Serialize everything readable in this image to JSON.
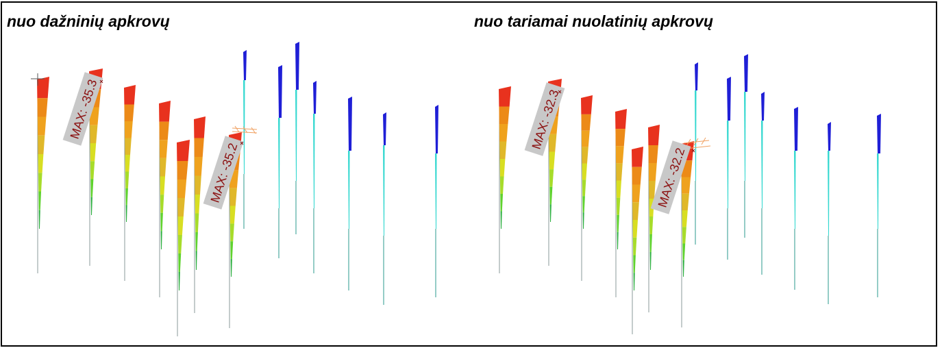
{
  "panels": [
    {
      "title": "nuo dažninių apkrovų",
      "max_labels": [
        "MAX: -35.3",
        "MAX: -35.2"
      ]
    },
    {
      "title": "nuo tariamai nuolatinių apkrovų",
      "max_labels": [
        "MAX: -32.3",
        "MAX: -32.2"
      ]
    }
  ],
  "palette": {
    "red": "#e8321e",
    "orange": "#ec8a18",
    "amber": "#efa21e",
    "yellow_orange": "#e0b82a",
    "yellow": "#d8de22",
    "lime": "#a7dc2a",
    "green": "#5fd22e",
    "green_dark": "#2aae3e",
    "blue": "#1f1fd6",
    "cyan": "#34d8d0",
    "teal": "#2a9a8e",
    "line_gray": "#8a9a98",
    "label_bg": "#c8c8c8",
    "label_text": "#8b1010",
    "frame": "#000000"
  }
}
